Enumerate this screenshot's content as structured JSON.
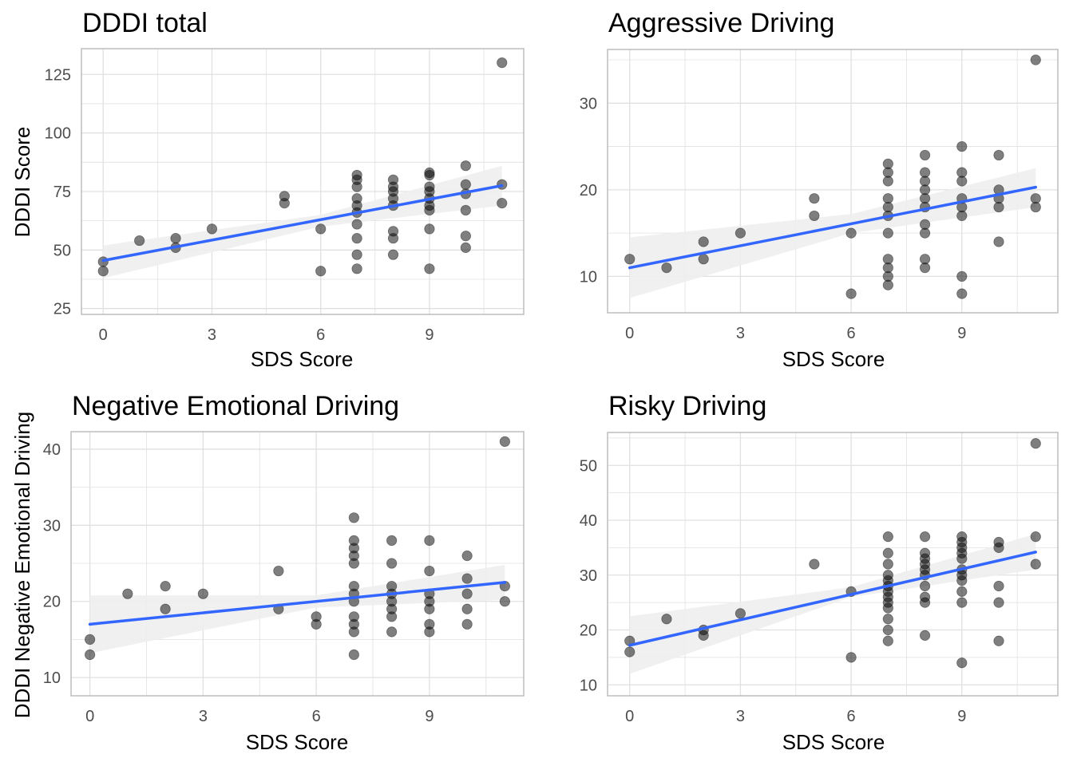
{
  "colors": {
    "point": "#000000",
    "point_opacity": 0.5,
    "fit_line": "#3366ff",
    "ci_band": "#eeeeee",
    "grid": "#e0e0e0",
    "panel_border": "#bdbdbd",
    "tick_text": "#4d4d4d"
  },
  "chart_data": [
    {
      "type": "scatter",
      "title": "DDDI total",
      "xlabel": "SDS Score",
      "ylabel": "DDDI Score",
      "xlim": [
        -0.6,
        11.6
      ],
      "ylim": [
        22.5,
        136
      ],
      "xticks": [
        0,
        3,
        6,
        9
      ],
      "yticks": [
        25,
        50,
        75,
        100,
        125
      ],
      "grid": true,
      "fit": {
        "x0": 0,
        "y0": 45.5,
        "x1": 11,
        "y1": 77.5
      },
      "ci": {
        "upper": [
          [
            0,
            52
          ],
          [
            6,
            65
          ],
          [
            11,
            86
          ]
        ],
        "lower": [
          [
            0,
            38
          ],
          [
            6,
            60
          ],
          [
            11,
            69
          ]
        ]
      },
      "points": [
        [
          0,
          45
        ],
        [
          0,
          41
        ],
        [
          1,
          54
        ],
        [
          2,
          55
        ],
        [
          2,
          51
        ],
        [
          3,
          59
        ],
        [
          5,
          73
        ],
        [
          5,
          70
        ],
        [
          6,
          59
        ],
        [
          6,
          41
        ],
        [
          7,
          82
        ],
        [
          7,
          80
        ],
        [
          7,
          77
        ],
        [
          7,
          72
        ],
        [
          7,
          69
        ],
        [
          7,
          66
        ],
        [
          7,
          61
        ],
        [
          7,
          55
        ],
        [
          7,
          48
        ],
        [
          7,
          42
        ],
        [
          8,
          80
        ],
        [
          8,
          77
        ],
        [
          8,
          75
        ],
        [
          8,
          72
        ],
        [
          8,
          69
        ],
        [
          8,
          58
        ],
        [
          8,
          55
        ],
        [
          8,
          48
        ],
        [
          9,
          83
        ],
        [
          9,
          82
        ],
        [
          9,
          77
        ],
        [
          9,
          75
        ],
        [
          9,
          72
        ],
        [
          9,
          69
        ],
        [
          9,
          67
        ],
        [
          9,
          59
        ],
        [
          9,
          42
        ],
        [
          10,
          86
        ],
        [
          10,
          78
        ],
        [
          10,
          74
        ],
        [
          10,
          67
        ],
        [
          10,
          56
        ],
        [
          10,
          51
        ],
        [
          11,
          130
        ],
        [
          11,
          78
        ],
        [
          11,
          70
        ]
      ]
    },
    {
      "type": "scatter",
      "title": "Aggressive Driving",
      "xlabel": "SDS Score",
      "ylabel": "",
      "xlim": [
        -0.6,
        11.6
      ],
      "ylim": [
        5.8,
        36.2
      ],
      "xticks": [
        0,
        3,
        6,
        9
      ],
      "yticks": [
        10,
        20,
        30
      ],
      "grid": true,
      "fit": {
        "x0": 0,
        "y0": 11.0,
        "x1": 11,
        "y1": 20.3
      },
      "ci": {
        "upper": [
          [
            0,
            14.5
          ],
          [
            6,
            17.2
          ],
          [
            11,
            22.5
          ]
        ],
        "lower": [
          [
            0,
            7.5
          ],
          [
            6,
            15.0
          ],
          [
            11,
            18.0
          ]
        ]
      },
      "points": [
        [
          0,
          12
        ],
        [
          1,
          11
        ],
        [
          2,
          14
        ],
        [
          2,
          12
        ],
        [
          3,
          15
        ],
        [
          5,
          19
        ],
        [
          5,
          17
        ],
        [
          6,
          15
        ],
        [
          6,
          8
        ],
        [
          7,
          23
        ],
        [
          7,
          22
        ],
        [
          7,
          21
        ],
        [
          7,
          19
        ],
        [
          7,
          18
        ],
        [
          7,
          17
        ],
        [
          7,
          15
        ],
        [
          7,
          12
        ],
        [
          7,
          11
        ],
        [
          7,
          10
        ],
        [
          7,
          9
        ],
        [
          8,
          24
        ],
        [
          8,
          22
        ],
        [
          8,
          21
        ],
        [
          8,
          20
        ],
        [
          8,
          19
        ],
        [
          8,
          18
        ],
        [
          8,
          16
        ],
        [
          8,
          15
        ],
        [
          8,
          12
        ],
        [
          8,
          11
        ],
        [
          9,
          25
        ],
        [
          9,
          22
        ],
        [
          9,
          21
        ],
        [
          9,
          19
        ],
        [
          9,
          18
        ],
        [
          9,
          17
        ],
        [
          9,
          10
        ],
        [
          9,
          8
        ],
        [
          10,
          24
        ],
        [
          10,
          20
        ],
        [
          10,
          19
        ],
        [
          10,
          18
        ],
        [
          10,
          14
        ],
        [
          11,
          35
        ],
        [
          11,
          19
        ],
        [
          11,
          18
        ]
      ]
    },
    {
      "type": "scatter",
      "title": "Negative Emotional Driving",
      "xlabel": "SDS Score",
      "ylabel": "DDDI Negative Emotional Driving",
      "xlim": [
        -0.5,
        11.5
      ],
      "ylim": [
        7.6,
        42.3
      ],
      "xticks": [
        0,
        3,
        6,
        9
      ],
      "yticks": [
        10,
        20,
        30,
        40
      ],
      "grid": true,
      "fit": {
        "x0": 0,
        "y0": 17.0,
        "x1": 11,
        "y1": 22.5
      },
      "ci": {
        "upper": [
          [
            0,
            20.8
          ],
          [
            6,
            20.8
          ],
          [
            11,
            24.8
          ]
        ],
        "lower": [
          [
            0,
            13.2
          ],
          [
            6,
            19.2
          ],
          [
            11,
            20.2
          ]
        ]
      },
      "points": [
        [
          0,
          15
        ],
        [
          0,
          13
        ],
        [
          1,
          21
        ],
        [
          2,
          22
        ],
        [
          2,
          19
        ],
        [
          3,
          21
        ],
        [
          5,
          24
        ],
        [
          5,
          19
        ],
        [
          6,
          18
        ],
        [
          6,
          17
        ],
        [
          7,
          31
        ],
        [
          7,
          28
        ],
        [
          7,
          27
        ],
        [
          7,
          26
        ],
        [
          7,
          25
        ],
        [
          7,
          22
        ],
        [
          7,
          21
        ],
        [
          7,
          20
        ],
        [
          7,
          18
        ],
        [
          7,
          17
        ],
        [
          7,
          16
        ],
        [
          7,
          13
        ],
        [
          8,
          28
        ],
        [
          8,
          25
        ],
        [
          8,
          22
        ],
        [
          8,
          21
        ],
        [
          8,
          20
        ],
        [
          8,
          19
        ],
        [
          8,
          18
        ],
        [
          8,
          16
        ],
        [
          9,
          28
        ],
        [
          9,
          24
        ],
        [
          9,
          21
        ],
        [
          9,
          20
        ],
        [
          9,
          19
        ],
        [
          9,
          17
        ],
        [
          9,
          16
        ],
        [
          10,
          26
        ],
        [
          10,
          23
        ],
        [
          10,
          21
        ],
        [
          10,
          19
        ],
        [
          10,
          17
        ],
        [
          11,
          41
        ],
        [
          11,
          22
        ],
        [
          11,
          20
        ]
      ]
    },
    {
      "type": "scatter",
      "title": "Risky Driving",
      "xlabel": "SDS Score",
      "ylabel": "",
      "xlim": [
        -0.6,
        11.6
      ],
      "ylim": [
        8.0,
        56.0
      ],
      "xticks": [
        0,
        3,
        6,
        9
      ],
      "yticks": [
        10,
        20,
        30,
        40,
        50
      ],
      "grid": true,
      "fit": {
        "x0": 0,
        "y0": 17.2,
        "x1": 11,
        "y1": 34.2
      },
      "ci": {
        "upper": [
          [
            0,
            22.5
          ],
          [
            6,
            27.8
          ],
          [
            11,
            37.5
          ]
        ],
        "lower": [
          [
            0,
            12.0
          ],
          [
            6,
            26.0
          ],
          [
            11,
            31.0
          ]
        ]
      },
      "points": [
        [
          0,
          18
        ],
        [
          0,
          16
        ],
        [
          1,
          22
        ],
        [
          2,
          20
        ],
        [
          2,
          19
        ],
        [
          3,
          23
        ],
        [
          5,
          32
        ],
        [
          6,
          27
        ],
        [
          6,
          15
        ],
        [
          7,
          37
        ],
        [
          7,
          34
        ],
        [
          7,
          32
        ],
        [
          7,
          30
        ],
        [
          7,
          29
        ],
        [
          7,
          28
        ],
        [
          7,
          27
        ],
        [
          7,
          26
        ],
        [
          7,
          25
        ],
        [
          7,
          24
        ],
        [
          7,
          22
        ],
        [
          7,
          20
        ],
        [
          7,
          18
        ],
        [
          8,
          37
        ],
        [
          8,
          34
        ],
        [
          8,
          33
        ],
        [
          8,
          32
        ],
        [
          8,
          31
        ],
        [
          8,
          30
        ],
        [
          8,
          28
        ],
        [
          8,
          26
        ],
        [
          8,
          25
        ],
        [
          8,
          19
        ],
        [
          9,
          37
        ],
        [
          9,
          36
        ],
        [
          9,
          35
        ],
        [
          9,
          34
        ],
        [
          9,
          33
        ],
        [
          9,
          31
        ],
        [
          9,
          30
        ],
        [
          9,
          29
        ],
        [
          9,
          27
        ],
        [
          9,
          25
        ],
        [
          9,
          14
        ],
        [
          10,
          36
        ],
        [
          10,
          35
        ],
        [
          10,
          28
        ],
        [
          10,
          25
        ],
        [
          10,
          18
        ],
        [
          11,
          54
        ],
        [
          11,
          37
        ],
        [
          11,
          32
        ]
      ]
    }
  ]
}
